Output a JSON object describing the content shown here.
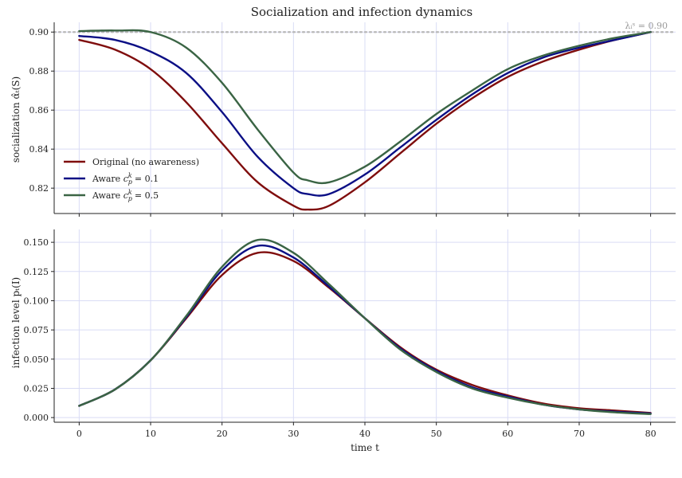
{
  "chart_data": {
    "type": "line",
    "title": "Socialization and infection dynamics",
    "xlabel": "time t",
    "xlim": [
      -3.5,
      83.5
    ],
    "xticks": [
      0,
      10,
      20,
      30,
      40,
      50,
      60,
      70,
      80
    ],
    "legend_position": "lower-left",
    "panels": [
      {
        "ylabel": "socialization α̂ₜ(S)",
        "ylim": [
          0.807,
          0.905
        ],
        "yticks": [
          "0.82",
          "0.84",
          "0.86",
          "0.88",
          "0.90"
        ],
        "ytick_values": [
          0.82,
          0.84,
          0.86,
          0.88,
          0.9
        ],
        "reference_line": {
          "y": 0.9,
          "label": "λᵢˢ = 0.90",
          "color": "#b8b8b8"
        },
        "x": [
          0,
          5,
          10,
          15,
          20,
          25,
          30,
          32,
          35,
          40,
          45,
          50,
          55,
          60,
          65,
          70,
          75,
          80
        ],
        "series": [
          {
            "name": "Original (no awareness)",
            "color": "#7f0d0d",
            "values": [
              0.896,
              0.891,
              0.881,
              0.864,
              0.843,
              0.823,
              0.811,
              0.809,
              0.811,
              0.823,
              0.838,
              0.853,
              0.866,
              0.877,
              0.885,
              0.891,
              0.896,
              0.9
            ]
          },
          {
            "name": "Aware c_p^k = 0.1",
            "color": "#0b0f85",
            "values": [
              0.898,
              0.896,
              0.89,
              0.879,
              0.859,
              0.836,
              0.82,
              0.817,
              0.817,
              0.827,
              0.841,
              0.855,
              0.868,
              0.879,
              0.887,
              0.892,
              0.896,
              0.9
            ]
          },
          {
            "name": "Aware c_p^k = 0.5",
            "color": "#3a6444",
            "values": [
              0.9005,
              0.9008,
              0.9,
              0.892,
              0.874,
              0.85,
              0.828,
              0.824,
              0.823,
              0.831,
              0.844,
              0.858,
              0.87,
              0.881,
              0.888,
              0.893,
              0.897,
              0.9
            ]
          }
        ]
      },
      {
        "ylabel": "infection level pₜ(I)",
        "ylim": [
          -0.004,
          0.161
        ],
        "yticks": [
          "0.000",
          "0.025",
          "0.050",
          "0.075",
          "0.100",
          "0.125",
          "0.150"
        ],
        "ytick_values": [
          0,
          0.025,
          0.05,
          0.075,
          0.1,
          0.125,
          0.15
        ],
        "x": [
          0,
          5,
          10,
          15,
          20,
          25,
          30,
          35,
          40,
          45,
          50,
          55,
          60,
          65,
          70,
          75,
          80
        ],
        "series": [
          {
            "name": "Original (no awareness)",
            "color": "#7f0d0d",
            "values": [
              0.01,
              0.024,
              0.049,
              0.085,
              0.122,
              0.141,
              0.134,
              0.111,
              0.085,
              0.06,
              0.041,
              0.028,
              0.019,
              0.012,
              0.008,
              0.006,
              0.004
            ]
          },
          {
            "name": "Aware c_p^k = 0.1",
            "color": "#0b0f85",
            "values": [
              0.01,
              0.024,
              0.049,
              0.086,
              0.126,
              0.147,
              0.137,
              0.112,
              0.085,
              0.059,
              0.04,
              0.026,
              0.018,
              0.011,
              0.007,
              0.005,
              0.0035
            ]
          },
          {
            "name": "Aware c_p^k = 0.5",
            "color": "#3a6444",
            "values": [
              0.01,
              0.024,
              0.049,
              0.087,
              0.129,
              0.152,
              0.141,
              0.114,
              0.085,
              0.058,
              0.039,
              0.025,
              0.017,
              0.011,
              0.007,
              0.0045,
              0.003
            ]
          }
        ]
      }
    ]
  }
}
